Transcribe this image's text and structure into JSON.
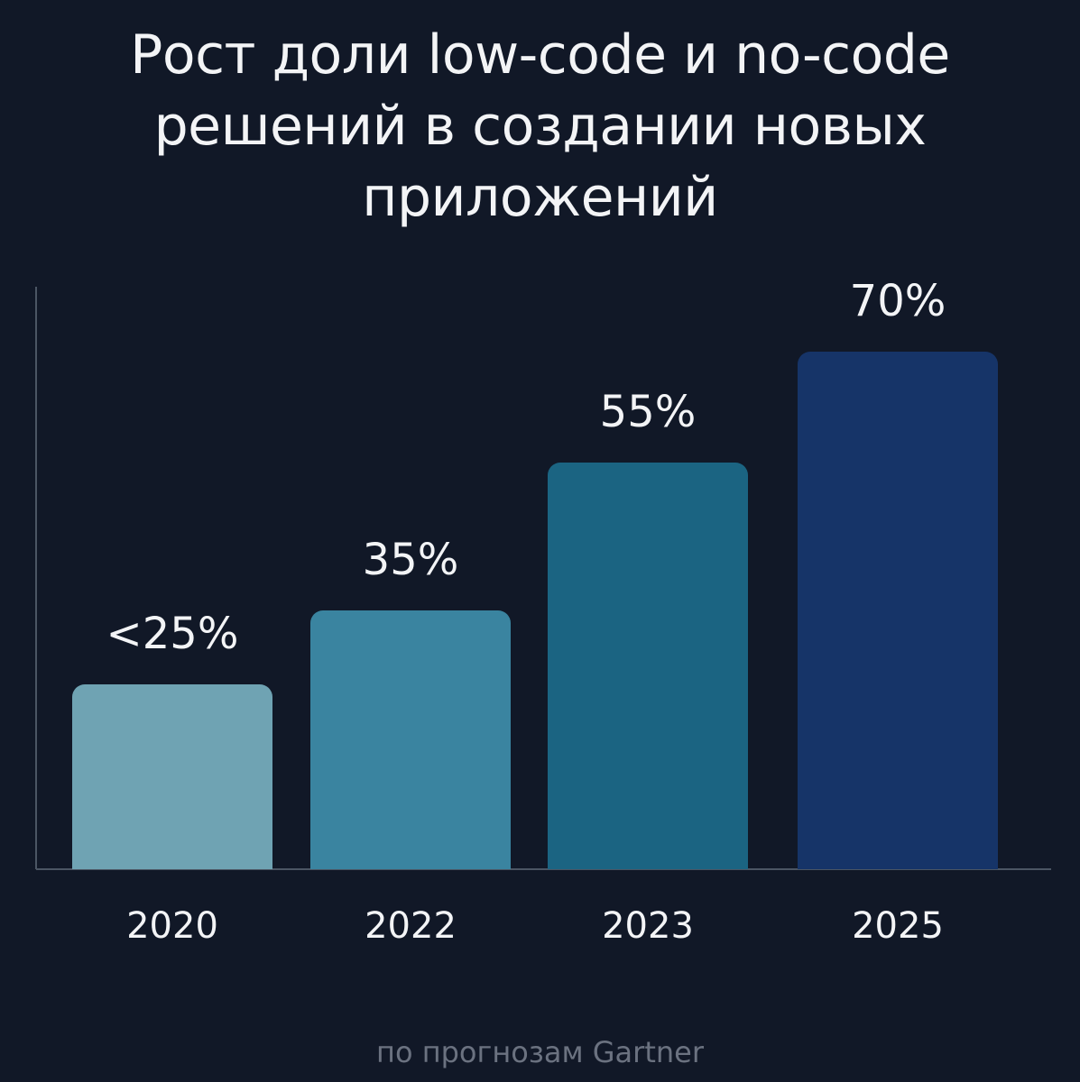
{
  "title": {
    "line1": "Рост доли low-code и no-code",
    "line2": "решений в создании новых",
    "line3": "приложений"
  },
  "chart_data": {
    "type": "bar",
    "categories": [
      "2020",
      "2022",
      "2023",
      "2025"
    ],
    "values": [
      25,
      35,
      55,
      70
    ],
    "value_labels": [
      "<25%",
      "35%",
      "55%",
      "70%"
    ],
    "unit": "%",
    "title": "Рост доли low-code и no-code решений в создании новых приложений",
    "xlabel": "",
    "ylabel": "",
    "ylim": [
      0,
      100
    ],
    "grid": false,
    "legend": "none",
    "bar_colors": [
      "#6fa3b3",
      "#3a84a0",
      "#1b6482",
      "#163468"
    ]
  },
  "caption": "по прогнозам Gartner",
  "colors": {
    "background": "#111827",
    "axis": "#4b5563",
    "text": "#f3f4f6",
    "caption": "#6b7280"
  }
}
